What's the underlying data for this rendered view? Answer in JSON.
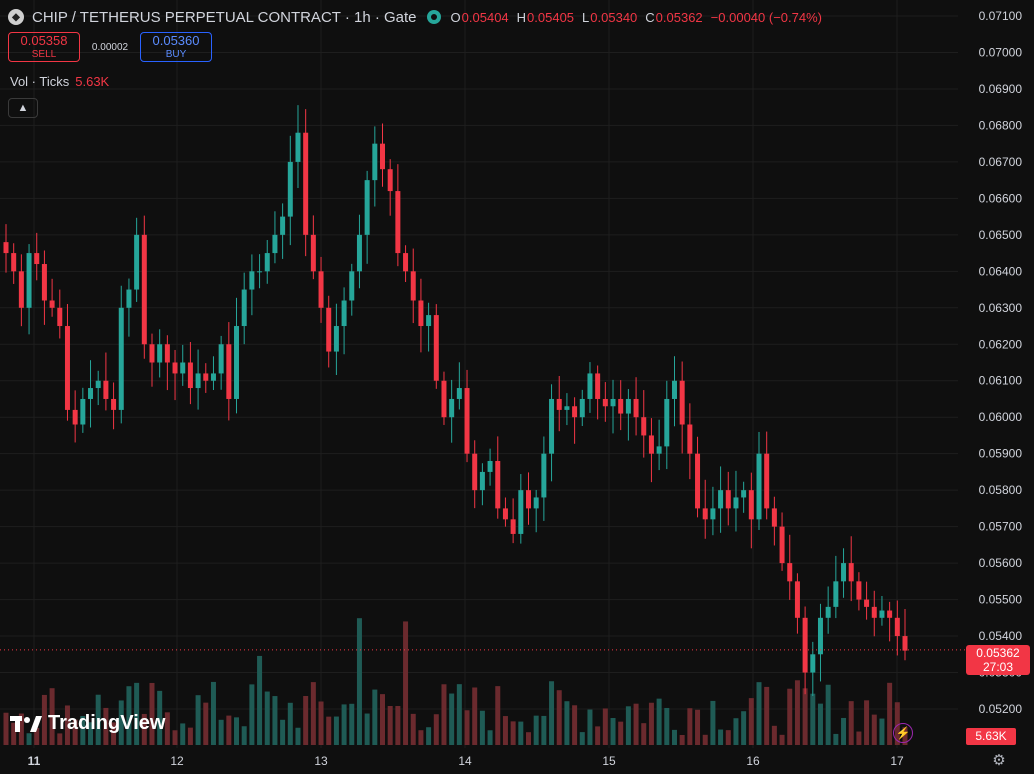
{
  "header": {
    "title": "CHIP / TETHERUS PERPETUAL CONTRACT · 1h · Gate",
    "ohlc": {
      "o_key": "O",
      "o": "0.05404",
      "h_key": "H",
      "h": "0.05405",
      "l_key": "L",
      "l": "0.05340",
      "c_key": "C",
      "c": "0.05362"
    },
    "change": "−0.00040 (−0.74%)"
  },
  "trade": {
    "sell_price": "0.05358",
    "sell_label": "SELL",
    "spread": "0.00002",
    "buy_price": "0.05360",
    "buy_label": "BUY"
  },
  "volume": {
    "label": "Vol · Ticks",
    "value": "5.63K"
  },
  "price_axis_label": {
    "price": "0.05362",
    "countdown": "27:03"
  },
  "volume_axis_label": "5.63K",
  "brand": "TradingView",
  "colors": {
    "up": "#26a69a",
    "down": "#f23645",
    "up_vol": "#1f5b55",
    "down_vol": "#6b2a2e",
    "grid": "#1e1e1e",
    "text": "#d1d4dc"
  },
  "icons": {
    "symbol": "chip-symbol-icon",
    "status": "market-status-icon",
    "collapse": "chevron-up-icon",
    "bolt": "lightning-icon",
    "settings": "gear-icon"
  },
  "chart_data": {
    "type": "candlestick",
    "ylim": [
      0.0511,
      0.0712
    ],
    "y_ticks": [
      "0.07100",
      "0.07000",
      "0.06900",
      "0.06800",
      "0.06700",
      "0.06600",
      "0.06500",
      "0.06400",
      "0.06300",
      "0.06200",
      "0.06100",
      "0.06000",
      "0.05900",
      "0.05800",
      "0.05700",
      "0.05600",
      "0.05500",
      "0.05400",
      "0.05300",
      "0.05200"
    ],
    "x_ticks": [
      "11",
      "12",
      "13",
      "14",
      "15",
      "16",
      "17"
    ],
    "points_close": [
      0.0645,
      0.064,
      0.063,
      0.0645,
      0.0642,
      0.0632,
      0.063,
      0.0625,
      0.0602,
      0.0598,
      0.0605,
      0.0608,
      0.061,
      0.0605,
      0.0602,
      0.063,
      0.0635,
      0.065,
      0.062,
      0.0615,
      0.062,
      0.0615,
      0.0612,
      0.0615,
      0.0608,
      0.0612,
      0.061,
      0.0612,
      0.062,
      0.0605,
      0.0625,
      0.0635,
      0.064,
      0.064,
      0.0645,
      0.065,
      0.0655,
      0.067,
      0.0678,
      0.065,
      0.064,
      0.063,
      0.0618,
      0.0625,
      0.0632,
      0.064,
      0.065,
      0.0665,
      0.0675,
      0.0668,
      0.0662,
      0.0645,
      0.064,
      0.0632,
      0.0625,
      0.0628,
      0.061,
      0.06,
      0.0605,
      0.0608,
      0.059,
      0.058,
      0.0585,
      0.0588,
      0.0575,
      0.0572,
      0.0568,
      0.058,
      0.0575,
      0.0578,
      0.059,
      0.0605,
      0.0602,
      0.0603,
      0.06,
      0.0605,
      0.0612,
      0.0605,
      0.0603,
      0.0605,
      0.0601,
      0.0605,
      0.06,
      0.0595,
      0.059,
      0.0592,
      0.0605,
      0.061,
      0.0598,
      0.059,
      0.0575,
      0.0572,
      0.0575,
      0.058,
      0.0575,
      0.0578,
      0.058,
      0.0572,
      0.059,
      0.0575,
      0.057,
      0.056,
      0.0555,
      0.0545,
      0.053,
      0.0535,
      0.0545,
      0.0548,
      0.0555,
      0.056,
      0.0555,
      0.055,
      0.0548,
      0.0545,
      0.0547,
      0.0545,
      0.054,
      0.0536
    ],
    "volume_units": "ticks",
    "last_volume": "5.63K"
  }
}
